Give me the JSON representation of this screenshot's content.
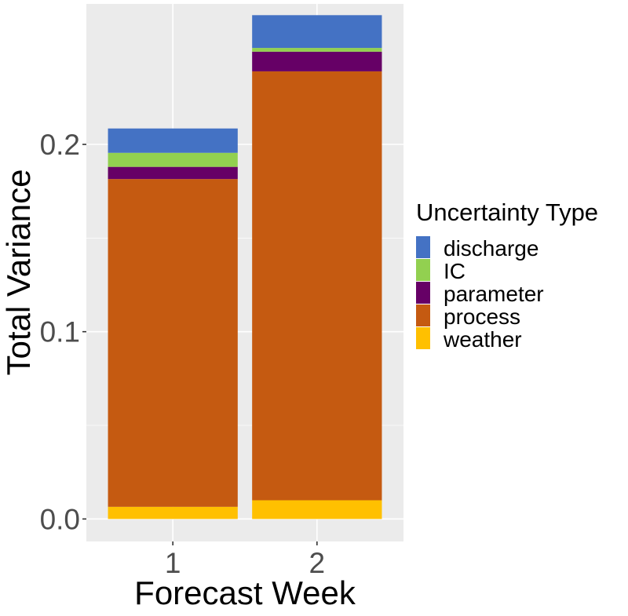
{
  "chart_data": {
    "type": "bar",
    "stacked": true,
    "xlabel": "Forecast Week",
    "ylabel": "Total Variance",
    "categories": [
      "1",
      "2"
    ],
    "ylim": [
      -0.012,
      0.275
    ],
    "yticks": [
      0.0,
      0.1,
      0.2
    ],
    "ytick_labels": [
      "0.0",
      "0.1",
      "0.2"
    ],
    "grid": true,
    "legend": {
      "title": "Uncertainty Type",
      "position": "right"
    },
    "stack_order_bottom_to_top": [
      "weather",
      "process",
      "parameter",
      "IC",
      "discharge"
    ],
    "series": [
      {
        "name": "discharge",
        "color": "#4472C4",
        "values": [
          0.013,
          0.0175
        ]
      },
      {
        "name": "IC",
        "color": "#92D050",
        "values": [
          0.0075,
          0.002
        ]
      },
      {
        "name": "parameter",
        "color": "#660066",
        "values": [
          0.0065,
          0.0105
        ]
      },
      {
        "name": "process",
        "color": "#C55A11",
        "values": [
          0.175,
          0.229
        ]
      },
      {
        "name": "weather",
        "color": "#FFC000",
        "values": [
          0.0065,
          0.01
        ]
      }
    ]
  }
}
